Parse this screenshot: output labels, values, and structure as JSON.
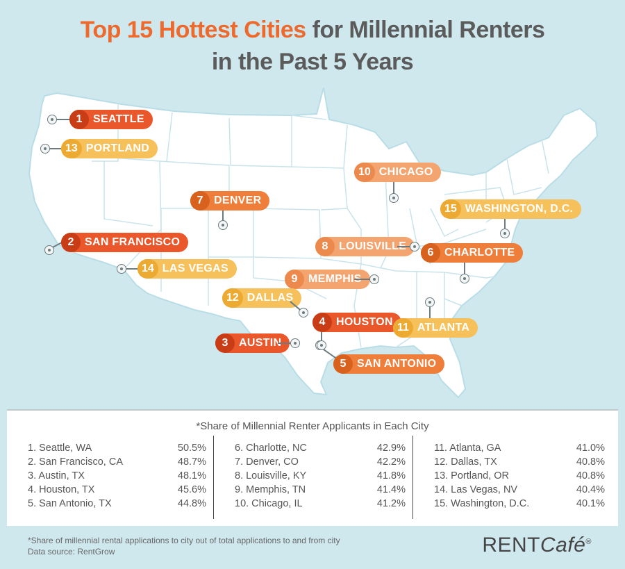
{
  "title": {
    "accent": "Top 15 Hottest Cities",
    "rest_line1": " for Millennial Renters",
    "line2": "in the Past 5 Years"
  },
  "colors": {
    "background": "#cfe8ee",
    "map_fill": "#ffffff",
    "map_border": "#b9dde6",
    "red": "#e9572b",
    "orange": "#ef7e3a",
    "yellow": "#f6c15a",
    "peach": "#f4a46f",
    "title_accent": "#ec6a2e"
  },
  "map": {
    "cities": [
      {
        "rank": "1",
        "name": "SEATTLE",
        "tier": "red"
      },
      {
        "rank": "13",
        "name": "PORTLAND",
        "tier": "yellow"
      },
      {
        "rank": "10",
        "name": "CHICAGO",
        "tier": "peach"
      },
      {
        "rank": "7",
        "name": "DENVER",
        "tier": "orange"
      },
      {
        "rank": "15",
        "name": "WASHINGTON, D.C.",
        "tier": "yellow"
      },
      {
        "rank": "2",
        "name": "SAN FRANCISCO",
        "tier": "red"
      },
      {
        "rank": "8",
        "name": "LOUISVILLE",
        "tier": "peach"
      },
      {
        "rank": "6",
        "name": "CHARLOTTE",
        "tier": "orange"
      },
      {
        "rank": "14",
        "name": "LAS VEGAS",
        "tier": "yellow"
      },
      {
        "rank": "9",
        "name": "MEMPHIS",
        "tier": "peach"
      },
      {
        "rank": "12",
        "name": "DALLAS",
        "tier": "yellow"
      },
      {
        "rank": "4",
        "name": "HOUSTON",
        "tier": "red"
      },
      {
        "rank": "11",
        "name": "ATLANTA",
        "tier": "yellow"
      },
      {
        "rank": "3",
        "name": "AUSTIN",
        "tier": "red"
      },
      {
        "rank": "5",
        "name": "SAN ANTONIO",
        "tier": "orange"
      }
    ]
  },
  "table": {
    "heading": "*Share of Millennial Renter Applicants in Each City",
    "columns": [
      [
        {
          "city": "1. Seattle, WA",
          "share": "50.5%"
        },
        {
          "city": "2. San Francisco, CA",
          "share": "48.7%"
        },
        {
          "city": "3. Austin, TX",
          "share": "48.1%"
        },
        {
          "city": "4. Houston, TX",
          "share": "45.6%"
        },
        {
          "city": "5. San Antonio, TX",
          "share": "44.8%"
        }
      ],
      [
        {
          "city": "6. Charlotte, NC",
          "share": "42.9%"
        },
        {
          "city": "7. Denver, CO",
          "share": "42.2%"
        },
        {
          "city": "8. Louisville, KY",
          "share": "41.8%"
        },
        {
          "city": "9. Memphis, TN",
          "share": "41.4%"
        },
        {
          "city": "10. Chicago, IL",
          "share": "41.2%"
        }
      ],
      [
        {
          "city": "11. Atlanta, GA",
          "share": "41.0%"
        },
        {
          "city": "12. Dallas, TX",
          "share": "40.8%"
        },
        {
          "city": "13. Portland, OR",
          "share": "40.8%"
        },
        {
          "city": "14. Las Vegas, NV",
          "share": "40.4%"
        },
        {
          "city": "15. Washington, D.C.",
          "share": "40.1%"
        }
      ]
    ]
  },
  "footnote": {
    "line1": "*Share of millennial rental applications to city out of total applications to and from city",
    "line2": "Data source: RentGrow"
  },
  "brand": {
    "rent": "RENT",
    "cafe": "Café",
    "mark": "®"
  }
}
